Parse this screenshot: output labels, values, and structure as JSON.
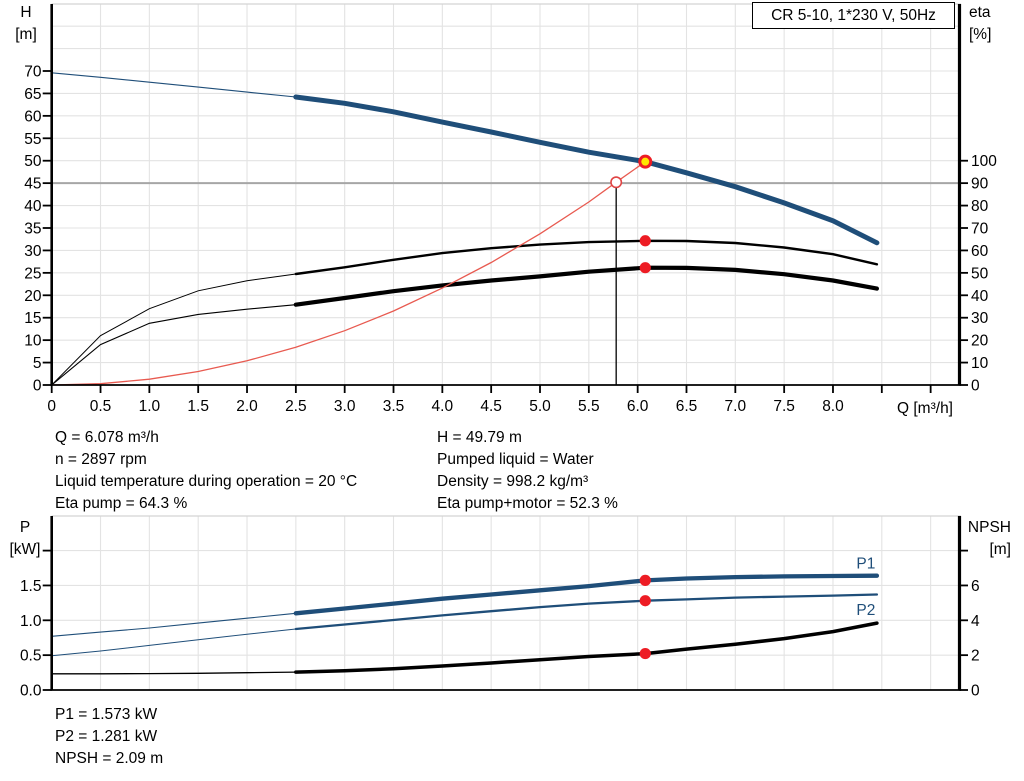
{
  "title_box": {
    "label": "CR 5-10, 1*230 V, 50Hz"
  },
  "colors": {
    "curve_blue": "#1F4E79",
    "curve_black": "#000000",
    "system_red": "#E85A50",
    "marker_red": "#ED1C24",
    "duty_yellow": "#FFE600",
    "reference_red": "#E04545",
    "grid": "#E3E3E3",
    "grid_dark": "#A6A6A6",
    "border_gray": "#D4D4D4",
    "axis": "#000000",
    "label_blue": "#1F4E79"
  },
  "top_chart": {
    "y_left": {
      "title": "H",
      "unit": "[m]",
      "tick_values": [
        0,
        5,
        10,
        15,
        20,
        25,
        30,
        35,
        40,
        45,
        50,
        55,
        60,
        65,
        70
      ],
      "tick_labels": [
        "0",
        "5",
        "10",
        "15",
        "20",
        "25",
        "30",
        "35",
        "40",
        "45",
        "50",
        "55",
        "60",
        "65",
        "70"
      ]
    },
    "y_right": {
      "title": "eta",
      "unit": "[%]",
      "tick_values": [
        0,
        10,
        20,
        30,
        40,
        50,
        60,
        70,
        80,
        90,
        100
      ],
      "tick_labels": [
        "0",
        "10",
        "20",
        "30",
        "40",
        "50",
        "60",
        "70",
        "80",
        "90",
        "100"
      ]
    },
    "x_axis": {
      "title": "Q [m³/h]",
      "tick_values": [
        0,
        0.5,
        1,
        1.5,
        2,
        2.5,
        3,
        3.5,
        4,
        4.5,
        5,
        5.5,
        6,
        6.5,
        7,
        7.5,
        8,
        8.5,
        9
      ],
      "tick_labels": [
        "0",
        "0.5",
        "1.0",
        "1.5",
        "2.0",
        "2.5",
        "3.0",
        "3.5",
        "4.0",
        "4.5",
        "5.0",
        "5.5",
        "6.0",
        "6.5",
        "7.0",
        "7.5",
        "8.0",
        "",
        ""
      ]
    }
  },
  "bottom_chart": {
    "y_left": {
      "title": "P",
      "unit": "[kW]",
      "tick_values": [
        0,
        0.5,
        1,
        1.5,
        2
      ],
      "tick_labels": [
        "0.0",
        "0.5",
        "1.0",
        "1.5",
        ""
      ]
    },
    "y_right": {
      "title": "NPSH",
      "unit": "[m]",
      "tick_values": [
        0,
        2,
        4,
        6,
        8
      ],
      "tick_labels": [
        "0",
        "2",
        "4",
        "6",
        ""
      ]
    },
    "x_axis": {
      "title": "",
      "tick_values": [],
      "tick_labels": []
    },
    "curve_labels": [
      {
        "text": "P1",
        "q": 8.24,
        "v": 1.74
      },
      {
        "text": "P2",
        "q": 8.24,
        "v": 1.076
      }
    ]
  },
  "chart_data": [
    {
      "id": "top",
      "type": "line",
      "title": "CR 5-10, 1*230 V, 50Hz",
      "xlabel": "Q [m³/h]",
      "ylabel_left": "H [m]",
      "ylabel_right": "eta [%]",
      "xlim": [
        0,
        9.3
      ],
      "ylim_left": [
        0,
        85
      ],
      "ylim_right": [
        0,
        100
      ],
      "series": [
        {
          "name": "head",
          "axis": "left",
          "thick_from": 2.5,
          "points": [
            [
              0,
              69.6
            ],
            [
              0.5,
              68.6
            ],
            [
              1.0,
              67.5
            ],
            [
              1.5,
              66.4
            ],
            [
              2.0,
              65.3
            ],
            [
              2.5,
              64.2
            ],
            [
              3.0,
              62.8
            ],
            [
              3.5,
              60.9
            ],
            [
              4.0,
              58.6
            ],
            [
              4.5,
              56.4
            ],
            [
              5.0,
              54.1
            ],
            [
              5.5,
              51.9
            ],
            [
              6.078,
              49.79
            ],
            [
              6.5,
              47.3
            ],
            [
              7.0,
              44.2
            ],
            [
              7.5,
              40.6
            ],
            [
              8.0,
              36.6
            ],
            [
              8.45,
              31.7
            ]
          ]
        },
        {
          "name": "eta-pump",
          "axis": "right",
          "thick_from": 2.5,
          "points": [
            [
              0,
              0
            ],
            [
              0.5,
              22
            ],
            [
              1.0,
              34
            ],
            [
              1.5,
              42
            ],
            [
              2.0,
              46.5
            ],
            [
              2.5,
              49.5
            ],
            [
              3.0,
              52.5
            ],
            [
              3.5,
              55.8
            ],
            [
              4.0,
              58.8
            ],
            [
              4.5,
              61.0
            ],
            [
              5.0,
              62.6
            ],
            [
              5.5,
              63.7
            ],
            [
              6.078,
              64.3
            ],
            [
              6.5,
              64.2
            ],
            [
              7.0,
              63.3
            ],
            [
              7.5,
              61.3
            ],
            [
              8.0,
              58.3
            ],
            [
              8.45,
              53.8
            ]
          ]
        },
        {
          "name": "eta-pump-motor",
          "axis": "right",
          "thick_from": 2.5,
          "points": [
            [
              0,
              0
            ],
            [
              0.5,
              18
            ],
            [
              1.0,
              27.5
            ],
            [
              1.5,
              31.5
            ],
            [
              2.0,
              33.8
            ],
            [
              2.5,
              35.8
            ],
            [
              3.0,
              38.8
            ],
            [
              3.5,
              41.8
            ],
            [
              4.0,
              44.4
            ],
            [
              4.5,
              46.6
            ],
            [
              5.0,
              48.4
            ],
            [
              5.5,
              50.5
            ],
            [
              6.078,
              52.3
            ],
            [
              6.5,
              52.2
            ],
            [
              7.0,
              51.3
            ],
            [
              7.5,
              49.4
            ],
            [
              8.0,
              46.6
            ],
            [
              8.45,
              43.0
            ]
          ]
        },
        {
          "name": "system-curve",
          "axis": "left",
          "points": [
            [
              0,
              0
            ],
            [
              0.5,
              0.3
            ],
            [
              1.0,
              1.3
            ],
            [
              1.5,
              3.0
            ],
            [
              2.0,
              5.4
            ],
            [
              2.5,
              8.4
            ],
            [
              3.0,
              12.1
            ],
            [
              3.5,
              16.5
            ],
            [
              4.0,
              21.6
            ],
            [
              4.5,
              27.3
            ],
            [
              5.0,
              33.7
            ],
            [
              5.5,
              40.8
            ],
            [
              5.78,
              45.2
            ],
            [
              6.078,
              49.79
            ]
          ]
        }
      ],
      "markers": [
        {
          "kind": "reference-line",
          "q": 5.78,
          "v_from": 45.2,
          "v_to": 0,
          "axis": "left"
        },
        {
          "kind": "reference-point",
          "q": 5.78,
          "v": 45.2,
          "axis": "left"
        },
        {
          "kind": "dot",
          "q": 6.078,
          "v": 64.3,
          "axis": "right"
        },
        {
          "kind": "dot",
          "q": 6.078,
          "v": 52.3,
          "axis": "right"
        },
        {
          "kind": "duty-point",
          "q": 6.078,
          "v": 49.79,
          "axis": "left"
        }
      ]
    },
    {
      "id": "bottom",
      "type": "line",
      "xlabel": "Q [m³/h]",
      "ylabel_left": "P [kW]",
      "ylabel_right": "NPSH [m]",
      "xlim": [
        0,
        9.3
      ],
      "ylim_left": [
        0,
        2.5
      ],
      "ylim_right": [
        0,
        10
      ],
      "series": [
        {
          "name": "NPSH",
          "axis": "right",
          "thick_from": 2.5,
          "points": [
            [
              0,
              0.93
            ],
            [
              0.5,
              0.93
            ],
            [
              1.0,
              0.94
            ],
            [
              1.5,
              0.96
            ],
            [
              2.0,
              0.99
            ],
            [
              2.5,
              1.03
            ],
            [
              3.0,
              1.1
            ],
            [
              3.5,
              1.22
            ],
            [
              4.0,
              1.38
            ],
            [
              4.5,
              1.55
            ],
            [
              5.0,
              1.74
            ],
            [
              5.5,
              1.92
            ],
            [
              6.078,
              2.09
            ],
            [
              6.5,
              2.35
            ],
            [
              7.0,
              2.62
            ],
            [
              7.5,
              2.95
            ],
            [
              8.0,
              3.35
            ],
            [
              8.45,
              3.84
            ]
          ]
        },
        {
          "name": "P2",
          "axis": "left",
          "thick_from": 2.5,
          "points": [
            [
              0,
              0.49
            ],
            [
              0.5,
              0.56
            ],
            [
              1.0,
              0.64
            ],
            [
              1.5,
              0.72
            ],
            [
              2.0,
              0.8
            ],
            [
              2.5,
              0.875
            ],
            [
              3.0,
              0.94
            ],
            [
              3.5,
              1.005
            ],
            [
              4.0,
              1.07
            ],
            [
              4.5,
              1.13
            ],
            [
              5.0,
              1.19
            ],
            [
              5.5,
              1.24
            ],
            [
              6.078,
              1.281
            ],
            [
              6.5,
              1.3
            ],
            [
              7.0,
              1.325
            ],
            [
              7.5,
              1.34
            ],
            [
              8.0,
              1.355
            ],
            [
              8.45,
              1.37
            ]
          ]
        },
        {
          "name": "P1",
          "axis": "left",
          "thick_from": 2.5,
          "points": [
            [
              0,
              0.77
            ],
            [
              0.5,
              0.83
            ],
            [
              1.0,
              0.89
            ],
            [
              1.5,
              0.96
            ],
            [
              2.0,
              1.03
            ],
            [
              2.5,
              1.1
            ],
            [
              3.0,
              1.17
            ],
            [
              3.5,
              1.24
            ],
            [
              4.0,
              1.31
            ],
            [
              4.5,
              1.37
            ],
            [
              5.0,
              1.43
            ],
            [
              5.5,
              1.49
            ],
            [
              6.078,
              1.573
            ],
            [
              6.5,
              1.6
            ],
            [
              7.0,
              1.62
            ],
            [
              7.5,
              1.63
            ],
            [
              8.0,
              1.635
            ],
            [
              8.45,
              1.64
            ]
          ]
        }
      ],
      "markers": [
        {
          "kind": "dot",
          "q": 6.078,
          "v": 1.573,
          "axis": "left"
        },
        {
          "kind": "dot",
          "q": 6.078,
          "v": 1.281,
          "axis": "left"
        },
        {
          "kind": "dot",
          "q": 6.078,
          "v": 2.09,
          "axis": "right"
        }
      ]
    }
  ],
  "operating_point_info": {
    "left": [
      "Q = 6.078 m³/h",
      "n = 2897 rpm",
      "Liquid temperature during operation = 20 °C",
      "Eta pump = 64.3 %"
    ],
    "right": [
      "H = 49.79 m",
      "Pumped liquid = Water",
      "Density = 998.2 kg/m³",
      "Eta pump+motor = 52.3 %"
    ]
  },
  "power_info": {
    "lines": [
      "P1 = 1.573 kW",
      "P2 = 1.281 kW",
      "NPSH = 2.09 m"
    ]
  }
}
